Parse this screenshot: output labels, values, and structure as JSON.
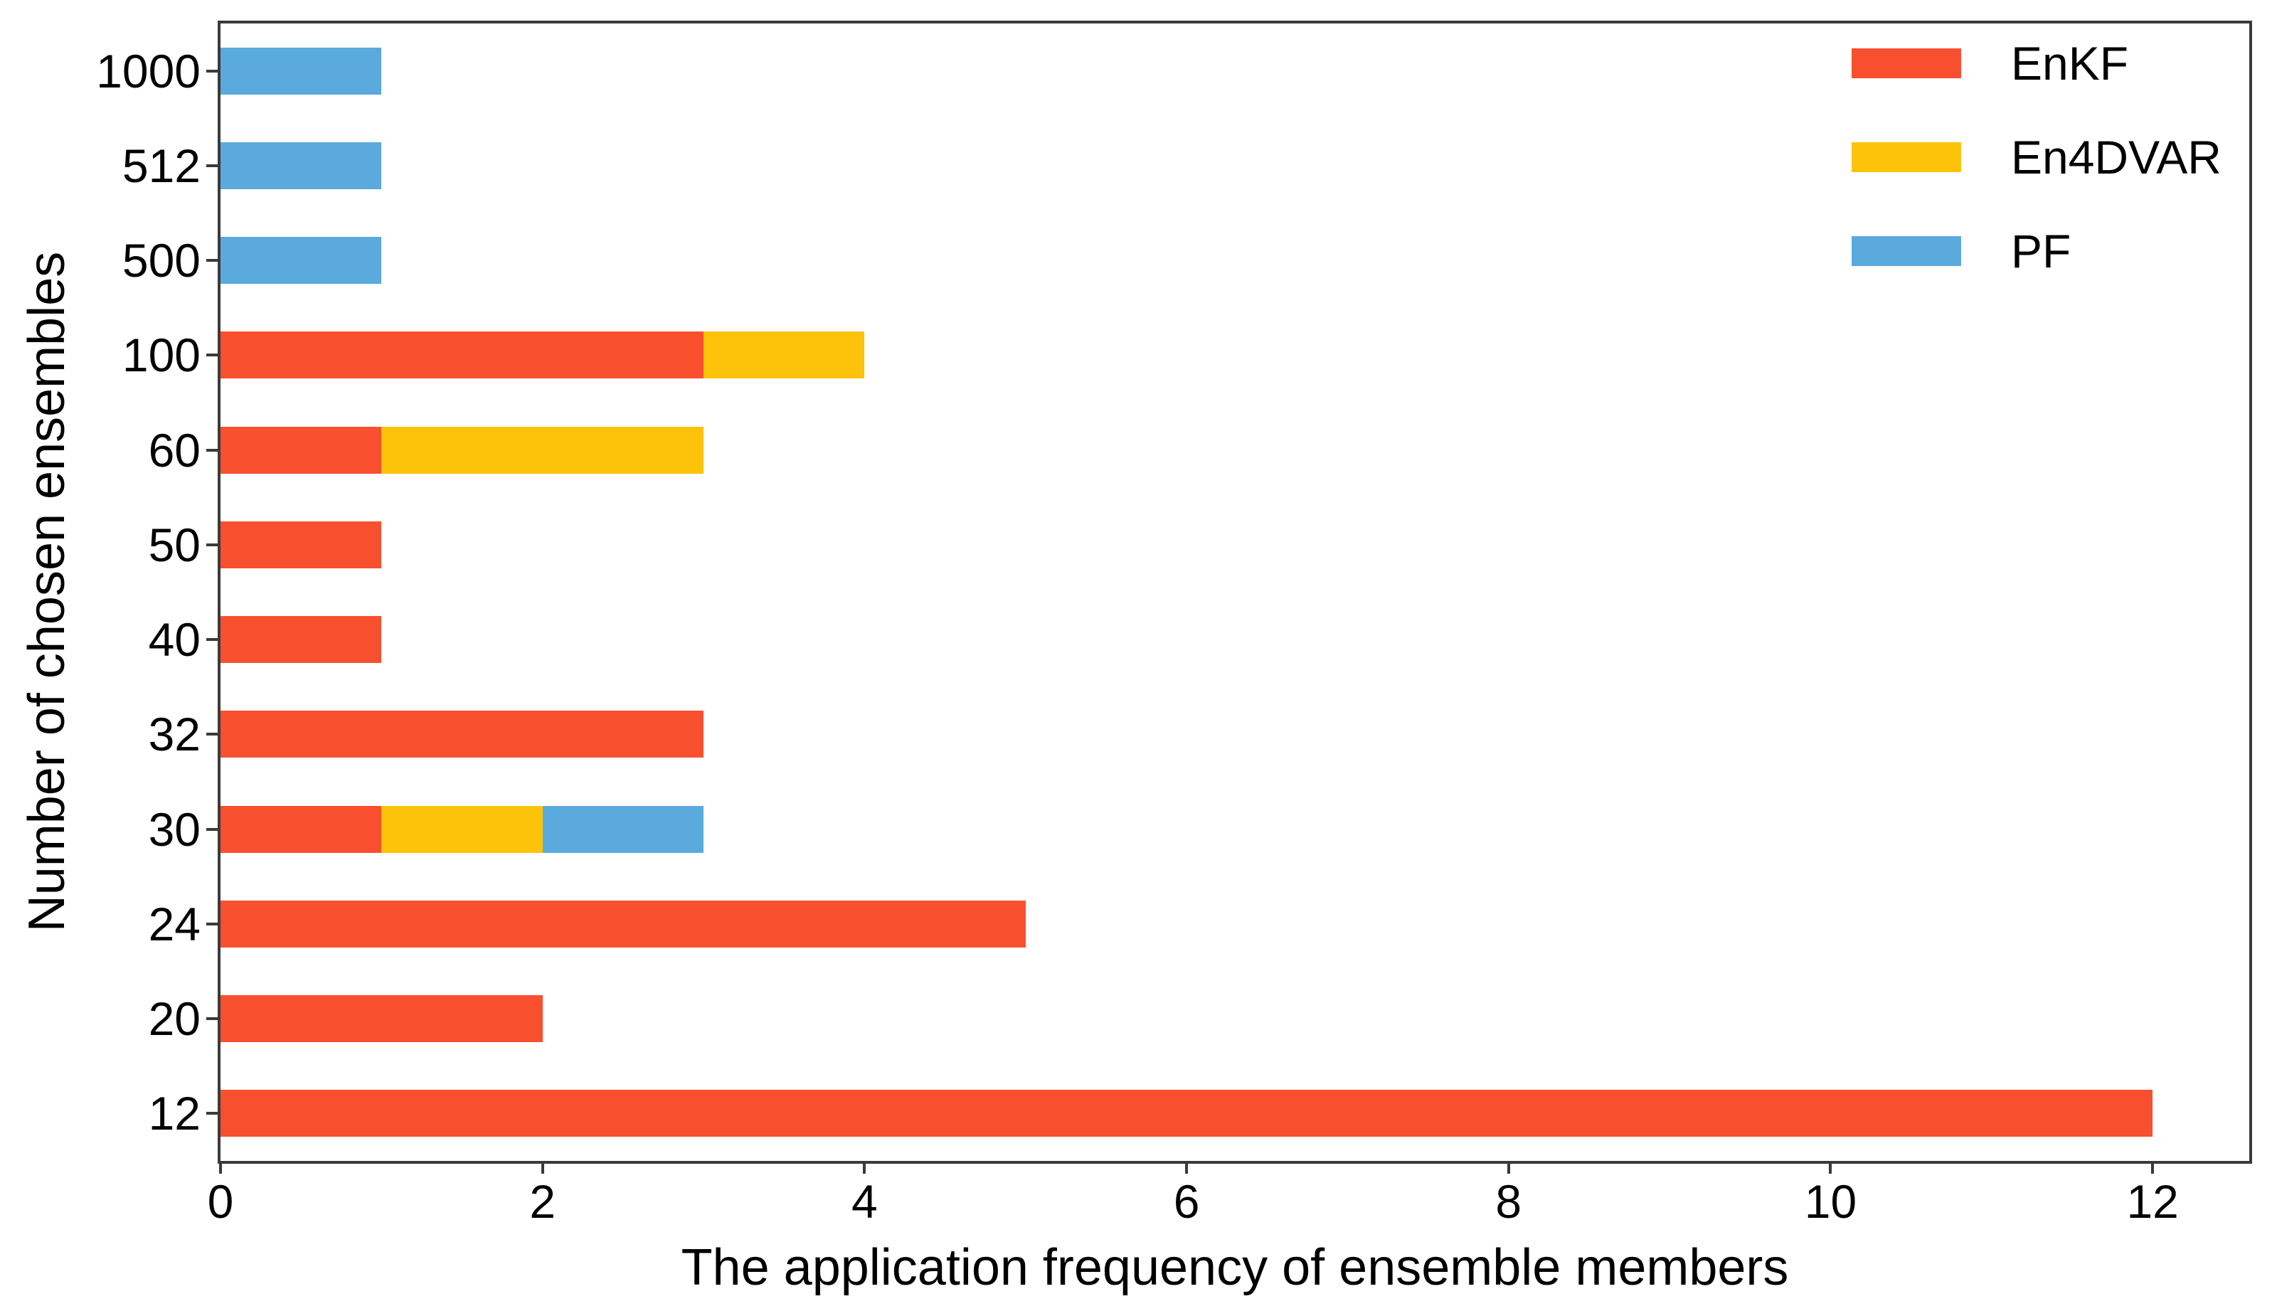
{
  "chart_data": {
    "type": "bar",
    "orientation": "horizontal",
    "stacked": true,
    "title": "",
    "xlabel": "The application frequency of ensemble members",
    "ylabel": "Number of chosen ensembles",
    "categories": [
      "1000",
      "512",
      "500",
      "100",
      "60",
      "50",
      "40",
      "32",
      "30",
      "24",
      "20",
      "12"
    ],
    "series": [
      {
        "name": "EnKF",
        "color": "#f8502f",
        "values": [
          0,
          0,
          0,
          3,
          1,
          1,
          1,
          3,
          1,
          5,
          2,
          12
        ]
      },
      {
        "name": "En4DVAR",
        "color": "#fdc30b",
        "values": [
          0,
          0,
          0,
          1,
          2,
          0,
          0,
          0,
          1,
          0,
          0,
          0
        ]
      },
      {
        "name": "PF",
        "color": "#5aaadd",
        "values": [
          1,
          1,
          1,
          0,
          0,
          0,
          0,
          0,
          1,
          0,
          0,
          0
        ]
      }
    ],
    "x_ticks": [
      0,
      2,
      4,
      6,
      8,
      10,
      12
    ],
    "xlim": [
      0,
      12.6
    ],
    "grid": false,
    "legend_position": "upper right"
  },
  "colors": {
    "background": "#ffffff",
    "spine": "#3a3a3a",
    "text": "#000000"
  }
}
